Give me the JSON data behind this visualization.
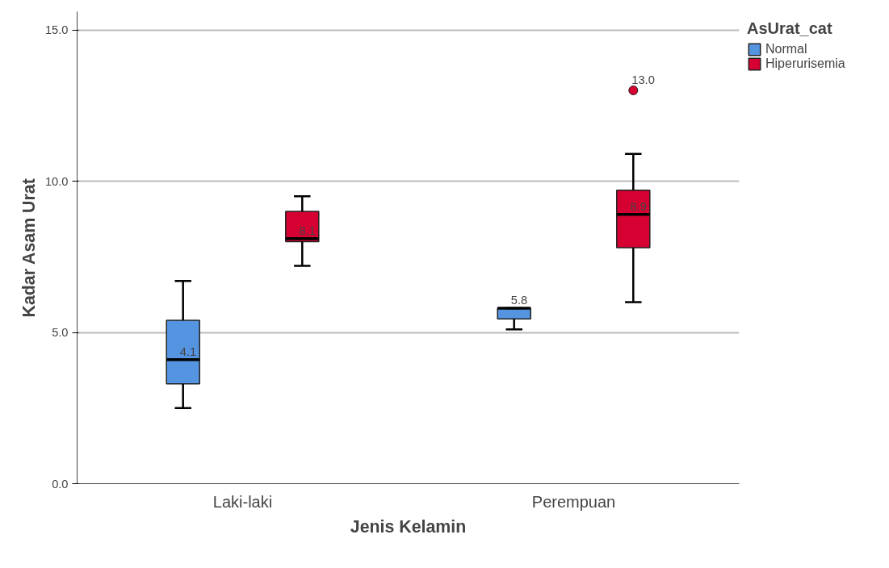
{
  "chart_data": {
    "type": "box",
    "xlabel": "Jenis Kelamin",
    "ylabel": "Kadar Asam Urat",
    "legend_title": "AsUrat_cat",
    "categories": [
      "Laki-laki",
      "Perempuan"
    ],
    "series": [
      {
        "name": "Normal",
        "color": "#5594e1",
        "boxes": [
          {
            "low": 2.5,
            "q1": 3.3,
            "median": 4.1,
            "q3": 5.4,
            "high": 6.7
          },
          {
            "low": 5.1,
            "q1": 5.45,
            "median": 5.8,
            "q3": 5.8,
            "high": 5.8
          }
        ],
        "value_labels": [
          "4.1",
          "5.8"
        ]
      },
      {
        "name": "Hiperurisemia",
        "color": "#d60032",
        "boxes": [
          {
            "low": 7.2,
            "q1": 8.0,
            "median": 8.1,
            "q3": 9.0,
            "high": 9.5
          },
          {
            "low": 6.0,
            "q1": 7.8,
            "median": 8.9,
            "q3": 9.7,
            "high": 10.9,
            "outliers": [
              13.0
            ]
          }
        ],
        "value_labels": [
          "8.1",
          "8.9"
        ]
      }
    ],
    "annotations": [
      "13.0"
    ],
    "ylim": [
      0,
      15.6
    ],
    "yticks": [
      {
        "value": 0,
        "label": "0.0"
      },
      {
        "value": 5,
        "label": "5.0"
      },
      {
        "value": 10,
        "label": "10.0"
      },
      {
        "value": 15,
        "label": "15.0"
      }
    ],
    "grid": "y",
    "legend": "top right"
  }
}
